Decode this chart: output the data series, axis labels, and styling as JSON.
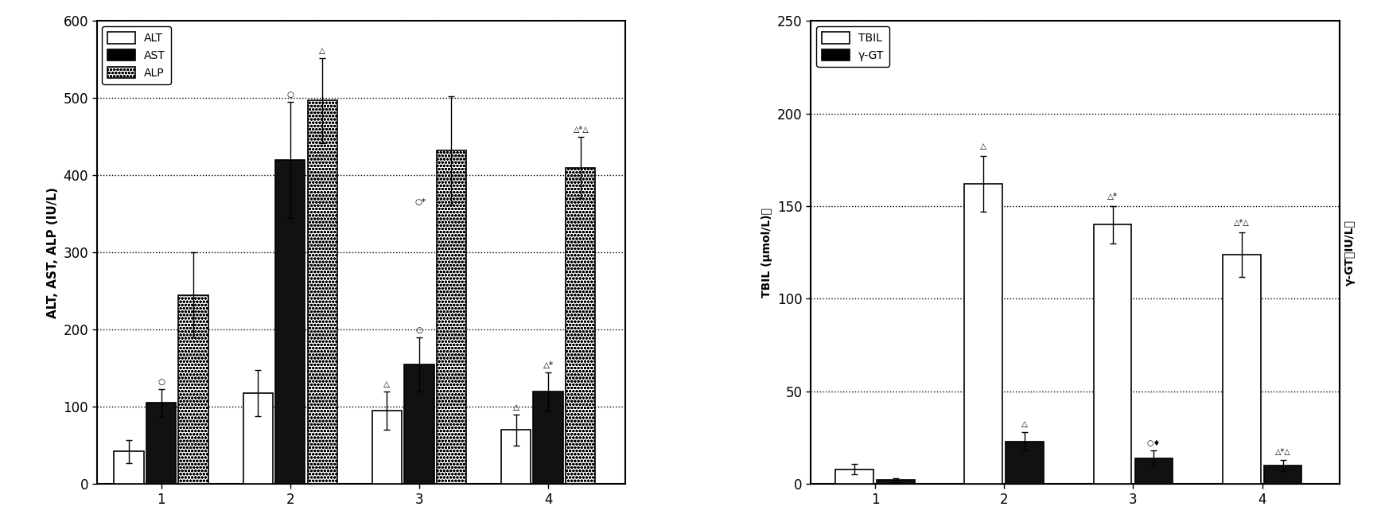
{
  "left": {
    "ylabel": "ALT, AST, ALP (IU/L)",
    "xticks": [
      1,
      2,
      3,
      4
    ],
    "ylim": [
      0,
      600
    ],
    "yticks": [
      0,
      100,
      200,
      300,
      400,
      500,
      600
    ],
    "ALT_values": [
      42,
      118,
      95,
      70
    ],
    "AST_values": [
      105,
      420,
      155,
      120
    ],
    "ALP_values": [
      245,
      497,
      432,
      410
    ],
    "ALT_errors": [
      15,
      30,
      25,
      20
    ],
    "AST_errors": [
      18,
      75,
      35,
      25
    ],
    "ALP_errors": [
      55,
      55,
      70,
      40
    ],
    "bar_width": 0.25
  },
  "right": {
    "ylabel_left": "TBIL (μmol/L)、",
    "ylabel_right": "γ-GT（IU/L）",
    "xticks": [
      1,
      2,
      3,
      4
    ],
    "ylim": [
      0,
      250
    ],
    "yticks": [
      0,
      50,
      100,
      150,
      200,
      250
    ],
    "TBIL_values": [
      8,
      162,
      140,
      124
    ],
    "GGT_values": [
      2,
      23,
      14,
      10
    ],
    "TBIL_errors": [
      3,
      15,
      10,
      12
    ],
    "GGT_errors": [
      1,
      5,
      4,
      3
    ],
    "bar_width": 0.32
  },
  "background_color": "#ffffff",
  "bar_color_white": "#ffffff",
  "bar_color_black": "#111111",
  "bar_edgecolor": "#000000",
  "grid_linestyle": ":",
  "grid_color": "#000000",
  "grid_linewidth": 1.0
}
